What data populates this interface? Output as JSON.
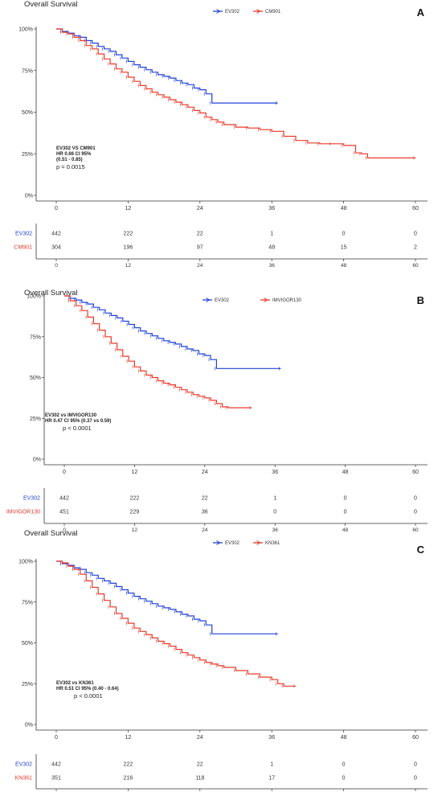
{
  "colors": {
    "ev302": "#2142d8",
    "comparator": "#e8392a",
    "axis": "#333333"
  },
  "chart_data": [
    {
      "type": "line",
      "title": "Overall Survival",
      "panel_label": "A",
      "legend": [
        "EV302",
        "CM901"
      ],
      "legend_position": "top-center",
      "xlim": [
        0,
        60
      ],
      "ylim": [
        0,
        100
      ],
      "x_ticks": [
        "0",
        "12",
        "24",
        "36",
        "48",
        "60"
      ],
      "y_ticks": [
        "0%",
        "25%",
        "50%",
        "75%",
        "100%"
      ],
      "annotation": [
        "EV302 VS CM901",
        "HR 0.66 CI 95%",
        "(0.51 - 0.85)",
        "p = 0.0015"
      ],
      "series": [
        {
          "name": "EV302",
          "x": [
            0,
            1,
            2,
            3,
            4,
            5,
            6,
            7,
            8,
            9,
            10,
            11,
            12,
            13,
            14,
            15,
            16,
            17,
            18,
            19,
            20,
            21,
            22,
            23,
            24,
            25,
            26,
            37
          ],
          "y": [
            100,
            98.5,
            97.5,
            96,
            95,
            93,
            91.5,
            89.5,
            88,
            86.5,
            84.5,
            82.5,
            80.5,
            78.5,
            77,
            75.5,
            74,
            72.5,
            71.5,
            70.5,
            69,
            67.5,
            66.5,
            64.5,
            63.5,
            61,
            55.5,
            55.5
          ]
        },
        {
          "name": "CM901",
          "x": [
            0,
            1,
            2,
            3,
            4,
            5,
            6,
            7,
            8,
            9,
            10,
            11,
            12,
            13,
            14,
            15,
            16,
            17,
            18,
            19,
            20,
            21,
            22,
            23,
            24,
            25,
            26,
            27,
            28,
            30,
            32,
            34,
            36,
            38,
            40,
            42,
            44,
            46,
            48,
            50,
            51,
            52,
            60
          ],
          "y": [
            100,
            98,
            97,
            95,
            93,
            90,
            88,
            85,
            82,
            79,
            76,
            74,
            71,
            68.5,
            66,
            64,
            62,
            60.5,
            59,
            57.5,
            56,
            54.5,
            53,
            51,
            49.5,
            47,
            45.5,
            44,
            42.5,
            41,
            40.5,
            39.5,
            38.5,
            35.5,
            33,
            31.5,
            31,
            31,
            30,
            25.5,
            25,
            22.5,
            22.5
          ]
        }
      ],
      "risk_table": {
        "rows": [
          {
            "name": "EV302",
            "values": [
              "442",
              "222",
              "22",
              "1",
              "0",
              "0"
            ]
          },
          {
            "name": "CM901",
            "values": [
              "304",
              "196",
              "97",
              "48",
              "15",
              "2"
            ]
          }
        ]
      }
    },
    {
      "type": "line",
      "title": "Overall Survival",
      "panel_label": "B",
      "legend": [
        "EV302",
        "IMVIGOR130"
      ],
      "legend_position": "top-center",
      "xlim": [
        0,
        60
      ],
      "ylim": [
        0,
        100
      ],
      "x_ticks": [
        "0",
        "12",
        "24",
        "36",
        "48",
        "60"
      ],
      "y_ticks": [
        "0%",
        "25%",
        "50%",
        "75%",
        "100%"
      ],
      "annotation": [
        "EV302 vs IMVIGOR130",
        "HR 0.47 CI 95% (0.37 vs 0.59)",
        "p < 0.0001"
      ],
      "series": [
        {
          "name": "EV302",
          "x": [
            0,
            1,
            2,
            3,
            4,
            5,
            6,
            7,
            8,
            9,
            10,
            11,
            12,
            13,
            14,
            15,
            16,
            17,
            18,
            19,
            20,
            21,
            22,
            23,
            24,
            25,
            26,
            37
          ],
          "y": [
            100,
            98.5,
            97.5,
            96,
            95,
            93,
            91.5,
            89.5,
            88,
            86.5,
            84.5,
            82.5,
            80.5,
            78.5,
            77,
            75.5,
            74,
            72.5,
            71.5,
            70.5,
            69,
            67.5,
            66.5,
            64.5,
            63.5,
            61,
            55.5,
            55.5
          ]
        },
        {
          "name": "IMVIGOR130",
          "x": [
            0,
            1,
            2,
            3,
            4,
            5,
            6,
            7,
            8,
            9,
            10,
            11,
            12,
            13,
            14,
            15,
            16,
            17,
            18,
            19,
            20,
            21,
            22,
            23,
            24,
            25,
            26,
            27,
            28,
            32
          ],
          "y": [
            100,
            97,
            94,
            91,
            87,
            83,
            79,
            75,
            71,
            67,
            63,
            60,
            56.5,
            54,
            51.5,
            50,
            48,
            46.5,
            45.5,
            44,
            42.5,
            41,
            39.5,
            38.5,
            37.5,
            36,
            34,
            32,
            31.5,
            31.5
          ]
        }
      ],
      "risk_table": {
        "rows": [
          {
            "name": "EV302",
            "values": [
              "442",
              "222",
              "22",
              "1",
              "0",
              "0"
            ]
          },
          {
            "name": "IMVIGOR130",
            "values": [
              "451",
              "229",
              "36",
              "0",
              "0",
              "0"
            ]
          }
        ]
      }
    },
    {
      "type": "line",
      "title": "Overall Survival",
      "panel_label": "C",
      "legend": [
        "EV302",
        "KN361"
      ],
      "legend_position": "top-center",
      "xlim": [
        0,
        60
      ],
      "ylim": [
        0,
        100
      ],
      "x_ticks": [
        "0",
        "12",
        "24",
        "36",
        "48",
        "60"
      ],
      "y_ticks": [
        "0%",
        "25%",
        "50%",
        "75%",
        "100%"
      ],
      "annotation": [
        "EV302 vs KN361",
        "HR 0.51 CI 95% (0.40 - 0.64)",
        "p < 0.0001"
      ],
      "series": [
        {
          "name": "EV302",
          "x": [
            0,
            1,
            2,
            3,
            4,
            5,
            6,
            7,
            8,
            9,
            10,
            11,
            12,
            13,
            14,
            15,
            16,
            17,
            18,
            19,
            20,
            21,
            22,
            23,
            24,
            25,
            26,
            37
          ],
          "y": [
            100,
            98.5,
            97.5,
            96,
            95,
            93,
            91.5,
            89.5,
            88,
            86.5,
            84.5,
            82.5,
            80.5,
            78.5,
            77,
            75.5,
            74,
            72.5,
            71.5,
            70.5,
            69,
            67.5,
            66.5,
            64.5,
            63.5,
            61,
            55.5,
            55.5
          ]
        },
        {
          "name": "KN361",
          "x": [
            0,
            1,
            2,
            3,
            4,
            5,
            6,
            7,
            8,
            9,
            10,
            11,
            12,
            13,
            14,
            15,
            16,
            17,
            18,
            19,
            20,
            21,
            22,
            23,
            24,
            25,
            26,
            27,
            28,
            30,
            32,
            34,
            36,
            37,
            38,
            40
          ],
          "y": [
            100,
            99,
            97,
            95,
            92,
            88,
            84,
            80,
            76,
            72,
            68,
            65,
            62,
            59,
            57,
            55,
            53,
            51,
            49.5,
            48,
            46,
            44,
            42.5,
            41,
            39.5,
            38,
            37,
            36,
            35,
            33,
            31,
            29,
            27.5,
            25,
            23.5,
            23.5
          ]
        }
      ],
      "risk_table": {
        "rows": [
          {
            "name": "EV302",
            "values": [
              "442",
              "222",
              "22",
              "1",
              "0",
              "0"
            ]
          },
          {
            "name": "KN361",
            "values": [
              "351",
              "216",
              "118",
              "17",
              "0",
              "0"
            ]
          }
        ]
      }
    }
  ]
}
